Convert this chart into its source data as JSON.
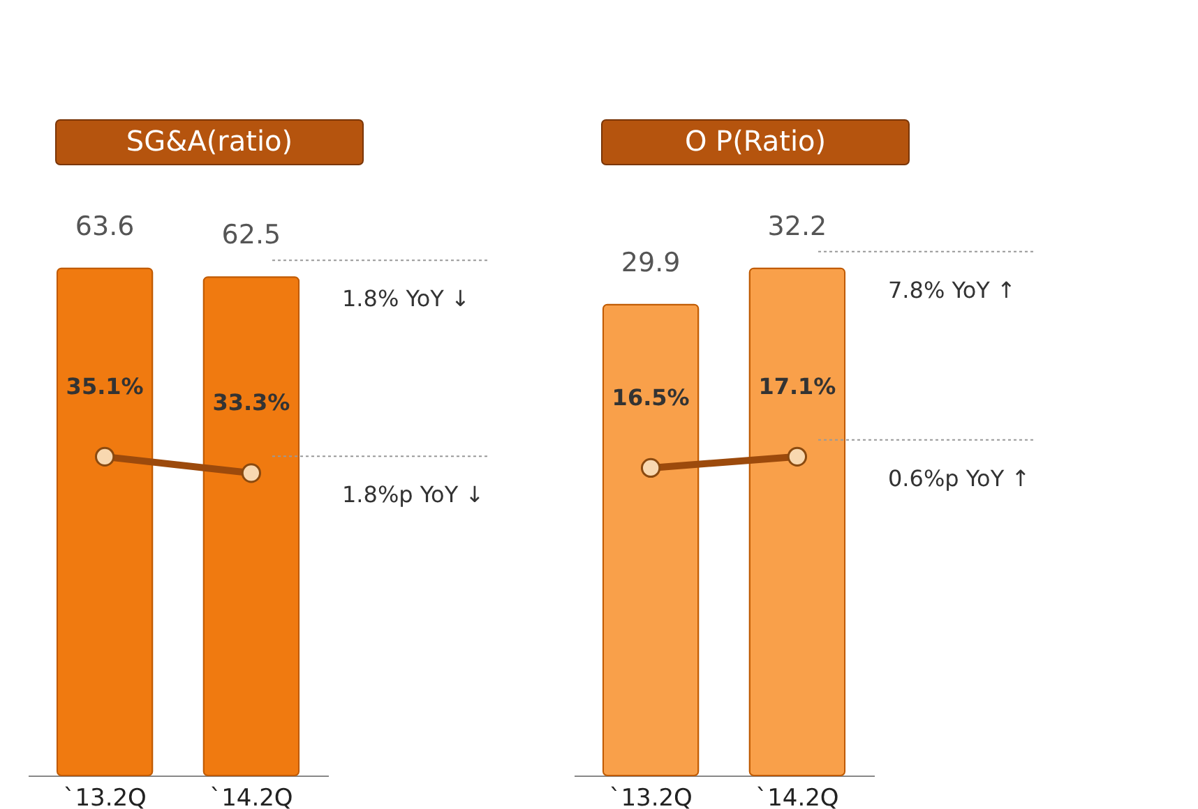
{
  "chart_data": [
    {
      "type": "bar",
      "title": "SG&A(ratio)",
      "categories": [
        "`13.2Q",
        "`14.2Q"
      ],
      "tick_labels": "x",
      "marker": "circle",
      "data_labels": true,
      "series": [
        {
          "type": "bar",
          "color": "#f07a10",
          "values": [
            63.6,
            62.5
          ]
        },
        {
          "type": "line",
          "axis": "y2",
          "color": "#9c4a0c",
          "values": [
            35.1,
            33.3
          ],
          "value_labels": [
            "35.1%",
            "33.3%"
          ]
        }
      ],
      "annotations": [
        "1.8% YoY ↓",
        "1.8%p YoY ↓"
      ]
    },
    {
      "type": "bar",
      "title": "O P(Ratio)",
      "categories": [
        "`13.2Q",
        "`14.2Q"
      ],
      "tick_labels": "x",
      "marker": "circle",
      "data_labels": true,
      "series": [
        {
          "type": "bar",
          "color": "#f9a04a",
          "values": [
            29.9,
            32.2
          ]
        },
        {
          "type": "line",
          "axis": "y2",
          "color": "#9c4a0c",
          "values": [
            16.5,
            17.1
          ],
          "value_labels": [
            "16.5%",
            "17.1%"
          ]
        }
      ],
      "annotations": [
        "7.8% YoY ↑",
        "0.6%p YoY ↑"
      ]
    }
  ]
}
